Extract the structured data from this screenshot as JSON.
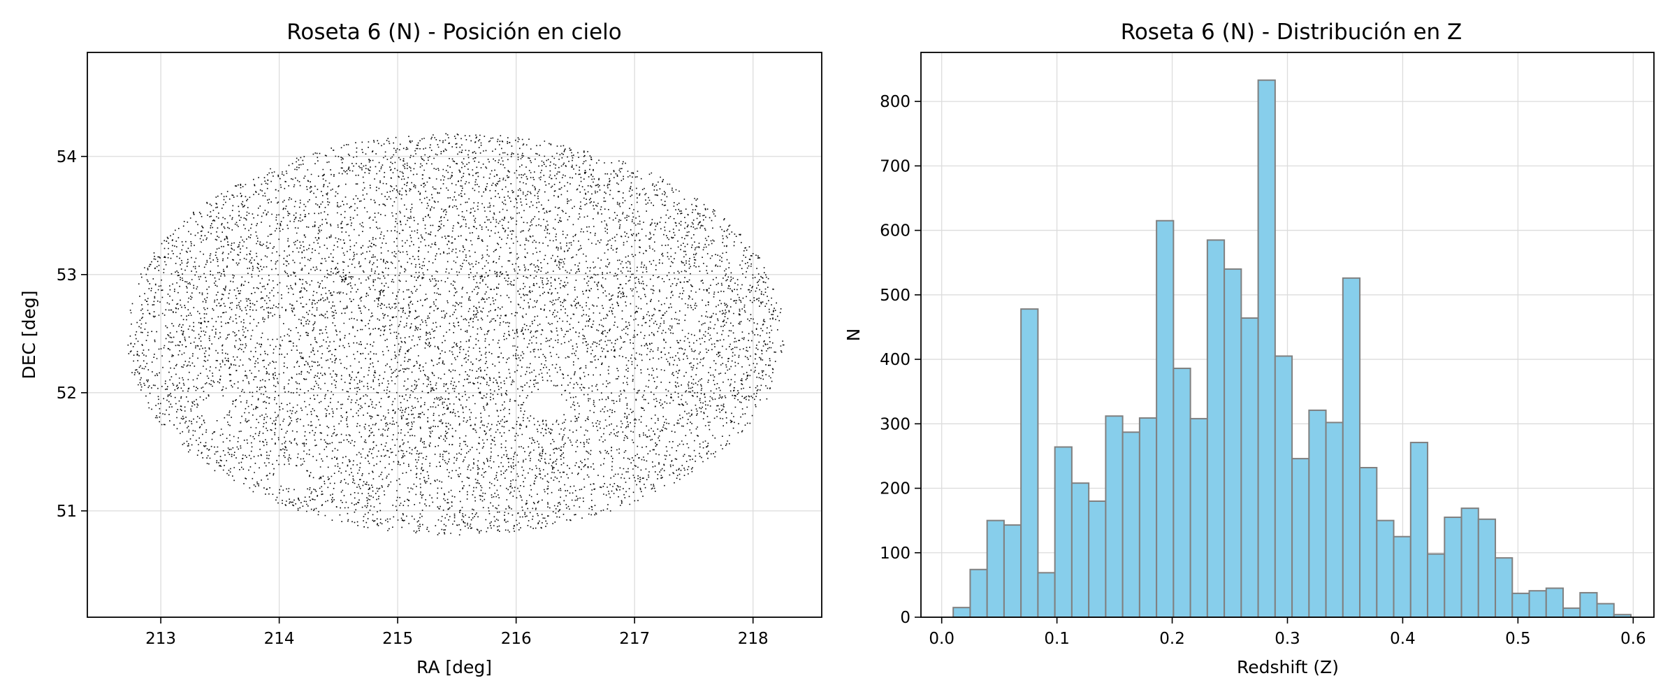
{
  "chart_data": [
    {
      "type": "scatter",
      "title": "Roseta 6 (N) - Posición en cielo",
      "xlabel": "RA [deg]",
      "ylabel": "DEC [deg]",
      "xlim": [
        212.38,
        218.58
      ],
      "ylim": [
        50.1,
        54.88
      ],
      "xticks": [
        213,
        214,
        215,
        216,
        217,
        218
      ],
      "yticks": [
        51,
        52,
        53,
        54
      ],
      "grid": true,
      "point_color": "#000000",
      "footprint": {
        "center_ra": 215.48,
        "center_dec": 52.5,
        "semi_axis_ra": 2.78,
        "semi_axis_dec": 1.7,
        "n_points": 9000
      }
    },
    {
      "type": "bar",
      "title": "Roseta 6 (N) - Distribución en Z",
      "xlabel": "Redshift (Z)",
      "ylabel": "N",
      "xlim": [
        -0.018,
        0.618
      ],
      "ylim": [
        0,
        876
      ],
      "xticks": [
        0.0,
        0.1,
        0.2,
        0.3,
        0.4,
        0.5,
        0.6
      ],
      "yticks": [
        0,
        100,
        200,
        300,
        400,
        500,
        600,
        700,
        800
      ],
      "grid": true,
      "bar_color": "#87ceeb",
      "edge_color": "#808080",
      "bin_edges": [
        0.01,
        0.0247,
        0.0394,
        0.0541,
        0.0688,
        0.0835,
        0.0982,
        0.1129,
        0.1276,
        0.1423,
        0.157,
        0.1717,
        0.1864,
        0.2011,
        0.2158,
        0.2305,
        0.2452,
        0.2599,
        0.2746,
        0.2893,
        0.304,
        0.3187,
        0.3334,
        0.3481,
        0.3628,
        0.3775,
        0.3922,
        0.4069,
        0.4216,
        0.4363,
        0.451,
        0.4657,
        0.4804,
        0.4951,
        0.5098,
        0.5245,
        0.5392,
        0.5539,
        0.5686,
        0.5833,
        0.598
      ],
      "values": [
        15,
        74,
        150,
        143,
        478,
        69,
        264,
        208,
        180,
        312,
        287,
        309,
        615,
        386,
        308,
        585,
        540,
        464,
        833,
        405,
        246,
        321,
        302,
        526,
        232,
        150,
        125,
        271,
        98,
        155,
        169,
        152,
        92,
        37,
        41,
        45,
        14,
        38,
        21,
        4
      ]
    }
  ]
}
